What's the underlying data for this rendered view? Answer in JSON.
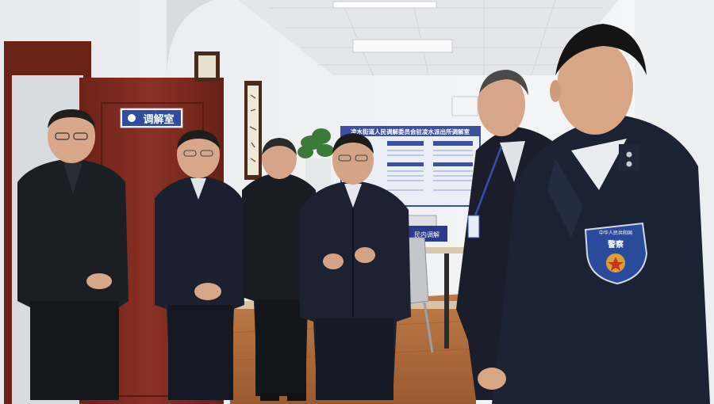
{
  "door_sign": {
    "text": "调解室"
  },
  "notice_board": {
    "title": "凌水街道人民调解委员会驻凌水派出所调解室"
  },
  "desk_plaque": {
    "text": "民内调解"
  },
  "police_badge": {
    "top_text": "中华人民共和国",
    "center_text": "警察"
  },
  "colors": {
    "wall": "#f1f3f4",
    "ceiling": "#e6e8ea",
    "door": "#7e2a1f",
    "floor": "#b06a3b",
    "board_blue": "#3c4fa0",
    "uniform": "#1b2234",
    "jacket": "#1a1d26"
  }
}
